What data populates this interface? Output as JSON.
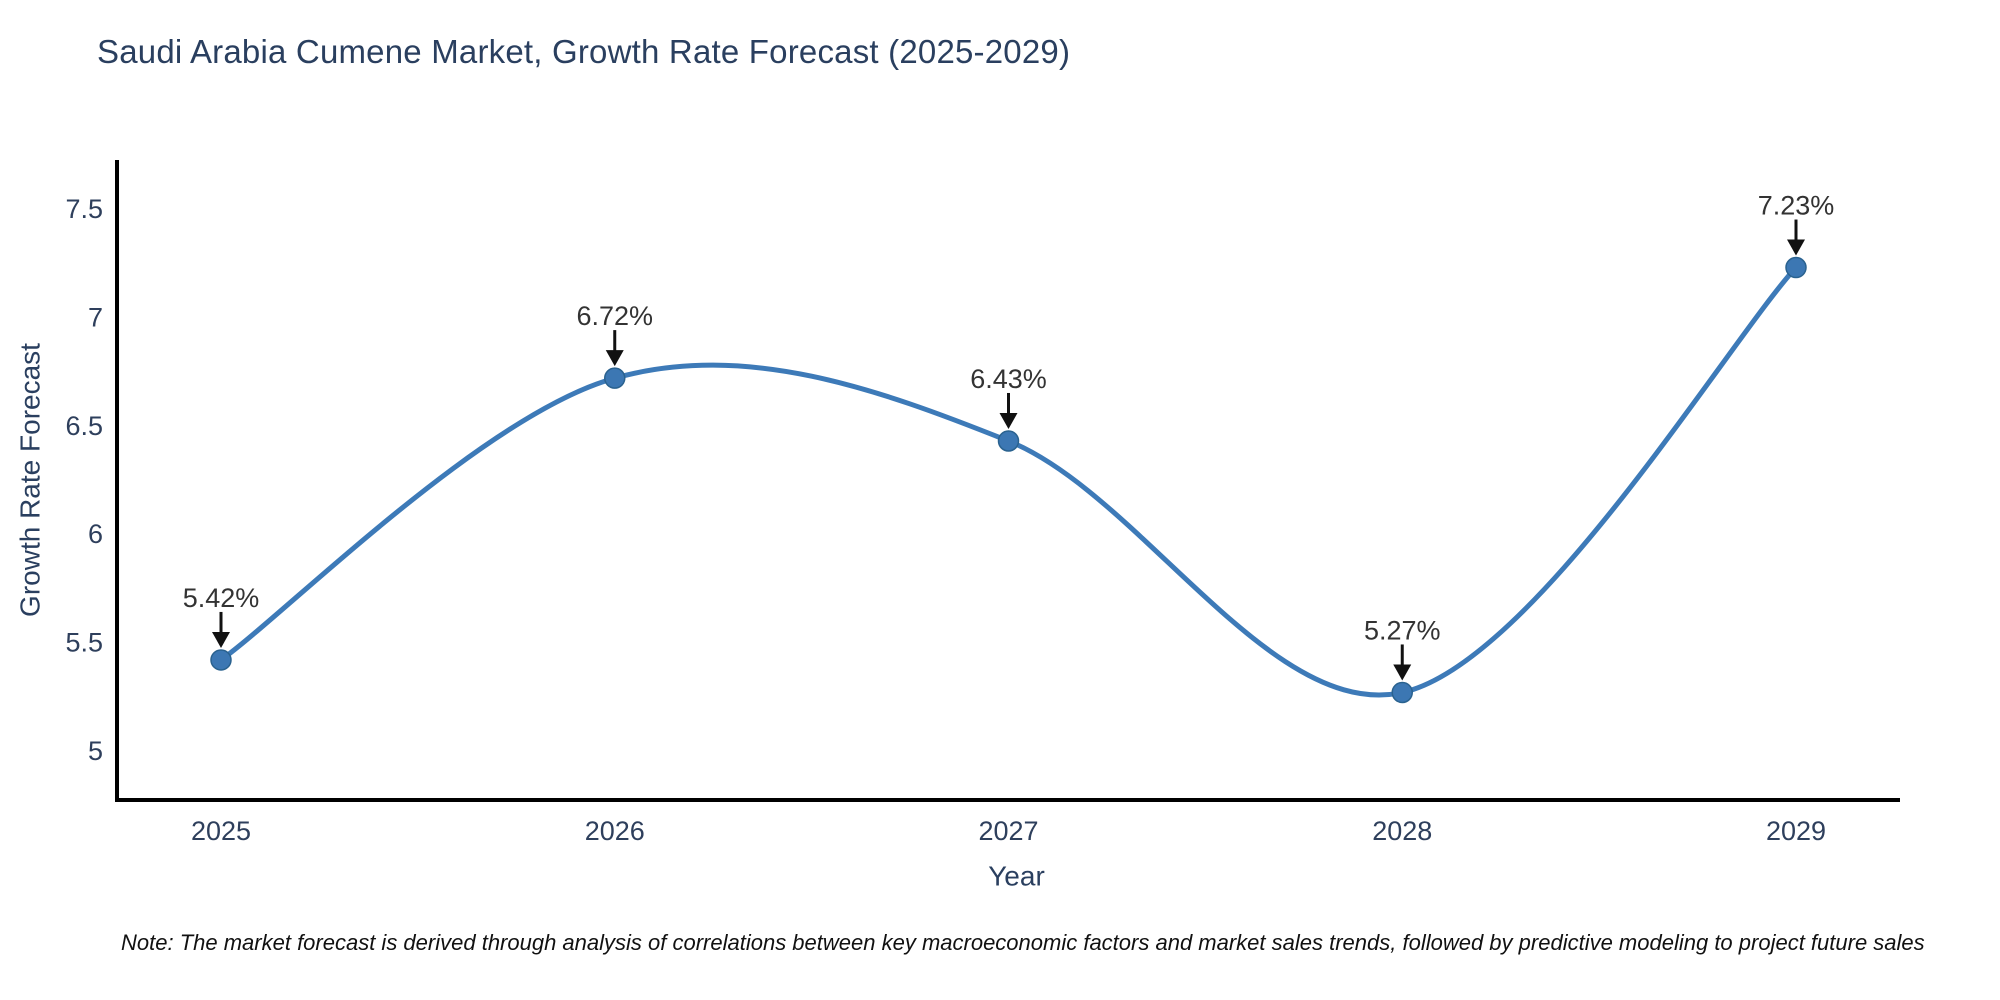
{
  "footnote": "Note: The market forecast is derived through analysis of correlations between key macroeconomic factors and market sales trends, followed by predictive modeling to project future sales",
  "chart_data": {
    "type": "line",
    "title": "Saudi Arabia Cumene Market, Growth Rate Forecast (2025-2029)",
    "xlabel": "Year",
    "ylabel": "Growth Rate Forecast",
    "x": [
      "2025",
      "2026",
      "2027",
      "2028",
      "2029"
    ],
    "series": [
      {
        "name": "Growth Rate Forecast",
        "values": [
          5.42,
          6.72,
          6.43,
          5.27,
          7.23
        ]
      }
    ],
    "point_labels": [
      "5.42%",
      "6.72%",
      "6.43%",
      "5.27%",
      "7.23%"
    ],
    "y_ticks": [
      5,
      5.5,
      6,
      6.5,
      7,
      7.5
    ],
    "y_tick_labels": [
      "5",
      "5.5",
      "6",
      "6.5",
      "7",
      "7.5"
    ],
    "ylim": [
      4.77,
      7.73
    ],
    "grid": false,
    "legend_position": "none",
    "line_shape": "spline",
    "marker": "circle",
    "annotation_arrows": "down",
    "colors": {
      "line": "#3d7ab8",
      "marker_fill": "#3c77b3",
      "marker_edge": "#2a628f",
      "axis_line": "#000000",
      "title_text": "#2a3f5f",
      "tick_text": "#2e3f5c",
      "axis_title_text": "#2a3f5f",
      "annotation_text": "#333333",
      "arrow": "#111111"
    }
  }
}
